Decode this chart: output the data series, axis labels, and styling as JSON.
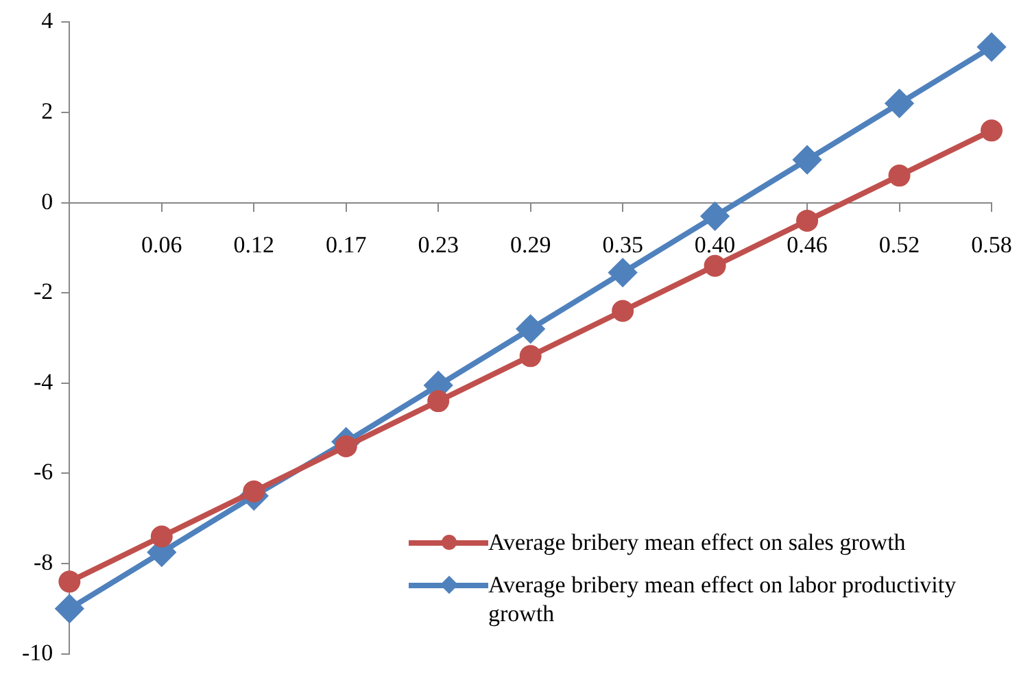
{
  "chart_data": {
    "type": "line",
    "categories": [
      null,
      "0.06",
      "0.12",
      "0.17",
      "0.23",
      "0.29",
      "0.35",
      "0.40",
      "0.46",
      "0.52",
      "0.58"
    ],
    "series": [
      {
        "name": "Average bribery mean effect on sales growth",
        "color": "#c0504d",
        "marker": "circle",
        "values": [
          -8.4,
          -7.4,
          -6.4,
          -5.4,
          -4.4,
          -3.4,
          -2.4,
          -1.4,
          -0.4,
          0.6,
          1.6
        ]
      },
      {
        "name": "Average bribery mean effect on labor productivity growth",
        "color": "#4f81bd",
        "marker": "diamond",
        "values": [
          -9.0,
          -7.75,
          -6.5,
          -5.3,
          -4.05,
          -2.8,
          -1.55,
          -0.3,
          0.95,
          2.2,
          3.45
        ]
      }
    ],
    "ylim": [
      -10,
      4
    ],
    "yticks": [
      -10,
      -8,
      -6,
      -4,
      -2,
      0,
      2,
      4
    ],
    "grid": false,
    "legend": "bottom right"
  }
}
